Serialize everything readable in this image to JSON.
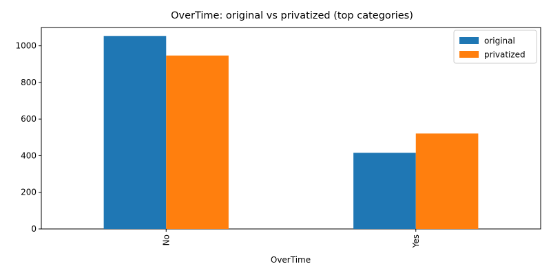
{
  "chart_data": {
    "type": "bar",
    "title": "OverTime: original vs privatized (top categories)",
    "xlabel": "OverTime",
    "ylabel": "",
    "categories": [
      "No",
      "Yes"
    ],
    "series": [
      {
        "name": "original",
        "values": [
          1054,
          416
        ],
        "color": "#1f77b4"
      },
      {
        "name": "privatized",
        "values": [
          947,
          521
        ],
        "color": "#ff7f0e"
      }
    ],
    "ylim": [
      0,
      1100
    ],
    "yticks": [
      0,
      200,
      400,
      600,
      800,
      1000
    ],
    "grid": false,
    "legend_position": "top-right",
    "x_tick_rotation": 90
  }
}
